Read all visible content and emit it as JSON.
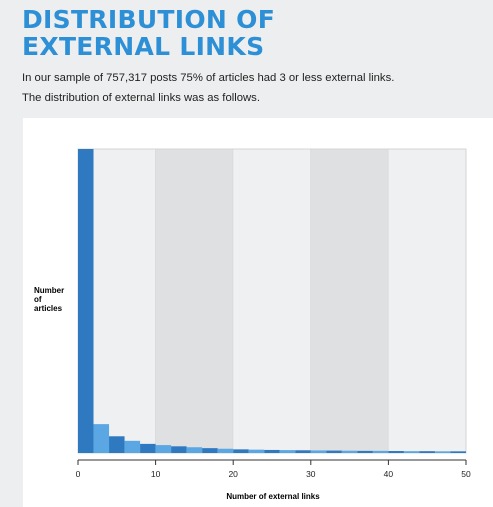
{
  "header": {
    "title_line1": "DISTRIBUTION OF",
    "title_line2": "EXTERNAL LINKS"
  },
  "intro": {
    "line1": "In our sample of 757,317 posts 75% of articles had 3 or less external links.",
    "line2": "The distribution of external links was as follows."
  },
  "colors": {
    "title": "#2d8fd5",
    "bar_dark": "#2f79c1",
    "bar_light": "#5aa7e4",
    "band_light": "#eff0f1",
    "band_dark": "#dfe0e1"
  },
  "chart_data": {
    "type": "bar",
    "title": "",
    "xlabel": "Number of external links",
    "ylabel_lines": [
      "Number",
      "of",
      "articles"
    ],
    "xlim": [
      0,
      50
    ],
    "ylim": [
      0,
      100
    ],
    "xticks": [
      "0",
      "10",
      "20",
      "30",
      "40",
      "50"
    ],
    "bin_width": 2,
    "bins": [
      {
        "x": 0,
        "value": 100
      },
      {
        "x": 2,
        "value": 9.5
      },
      {
        "x": 4,
        "value": 5.5
      },
      {
        "x": 6,
        "value": 4
      },
      {
        "x": 8,
        "value": 3
      },
      {
        "x": 10,
        "value": 2.6
      },
      {
        "x": 12,
        "value": 2.2
      },
      {
        "x": 14,
        "value": 1.9
      },
      {
        "x": 16,
        "value": 1.6
      },
      {
        "x": 18,
        "value": 1.4
      },
      {
        "x": 20,
        "value": 1.2
      },
      {
        "x": 22,
        "value": 1.1
      },
      {
        "x": 24,
        "value": 1.0
      },
      {
        "x": 26,
        "value": 0.95
      },
      {
        "x": 28,
        "value": 0.9
      },
      {
        "x": 30,
        "value": 0.85
      },
      {
        "x": 32,
        "value": 0.8
      },
      {
        "x": 34,
        "value": 0.75
      },
      {
        "x": 36,
        "value": 0.7
      },
      {
        "x": 38,
        "value": 0.7
      },
      {
        "x": 40,
        "value": 0.65
      },
      {
        "x": 42,
        "value": 0.6
      },
      {
        "x": 44,
        "value": 0.6
      },
      {
        "x": 46,
        "value": 0.55
      },
      {
        "x": 48,
        "value": 0.55
      }
    ],
    "grid": false
  }
}
